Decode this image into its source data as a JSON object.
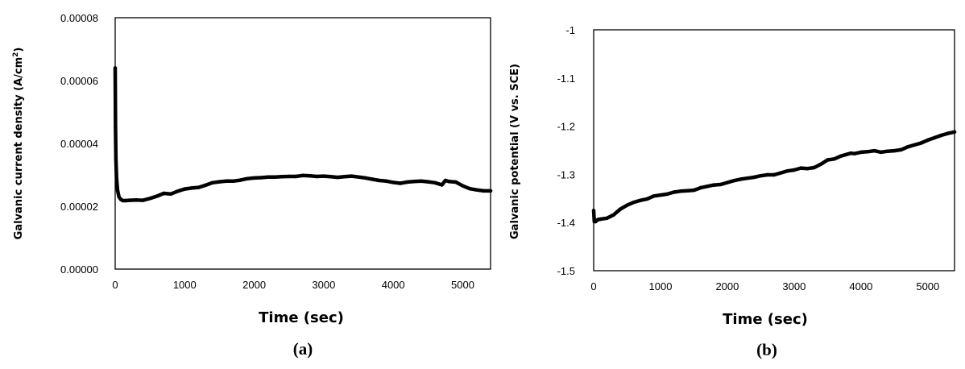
{
  "chart_data": [
    {
      "type": "line",
      "panel_label": "(a)",
      "xlabel": "Time (sec)",
      "ylabel_main": "Galvanic current density (A/cm",
      "ylabel_sup": "2",
      "ylabel_end": ")",
      "xlim": [
        0,
        5400
      ],
      "ylim": [
        0,
        8e-05
      ],
      "x_ticks": [
        "0",
        "1000",
        "2000",
        "3000",
        "4000",
        "5000"
      ],
      "y_ticks": [
        "0.00000",
        "0.00002",
        "0.00004",
        "0.00006",
        "0.00008"
      ],
      "grid": false,
      "series": [
        {
          "x": [
            0,
            5,
            10,
            20,
            35,
            55,
            80,
            110,
            150,
            200,
            300,
            400,
            500,
            600,
            700,
            800,
            900,
            1000,
            1100,
            1200,
            1300,
            1400,
            1500,
            1600,
            1700,
            1800,
            1900,
            2000,
            2100,
            2200,
            2300,
            2400,
            2500,
            2600,
            2700,
            2800,
            2900,
            3000,
            3100,
            3200,
            3300,
            3400,
            3500,
            3600,
            3700,
            3800,
            3900,
            4000,
            4100,
            4200,
            4300,
            4400,
            4500,
            4600,
            4700,
            4750,
            4800,
            4900,
            5000,
            5100,
            5200,
            5300,
            5400
          ],
          "y": [
            6.4e-05,
            4.5e-05,
            3.5e-05,
            2.9e-05,
            2.5e-05,
            2.3e-05,
            2.22e-05,
            2.18e-05,
            2.18e-05,
            2.19e-05,
            2.2e-05,
            2.19e-05,
            2.25e-05,
            2.32e-05,
            2.41e-05,
            2.39e-05,
            2.48e-05,
            2.55e-05,
            2.58e-05,
            2.6e-05,
            2.67e-05,
            2.75e-05,
            2.78e-05,
            2.8e-05,
            2.8e-05,
            2.83e-05,
            2.88e-05,
            2.9e-05,
            2.91e-05,
            2.93e-05,
            2.93e-05,
            2.94e-05,
            2.95e-05,
            2.95e-05,
            2.98e-05,
            2.97e-05,
            2.95e-05,
            2.96e-05,
            2.94e-05,
            2.92e-05,
            2.94e-05,
            2.96e-05,
            2.93e-05,
            2.9e-05,
            2.86e-05,
            2.82e-05,
            2.8e-05,
            2.76e-05,
            2.73e-05,
            2.77e-05,
            2.79e-05,
            2.8e-05,
            2.78e-05,
            2.75e-05,
            2.68e-05,
            2.82e-05,
            2.79e-05,
            2.77e-05,
            2.65e-05,
            2.56e-05,
            2.52e-05,
            2.49e-05,
            2.49e-05
          ]
        }
      ]
    },
    {
      "type": "line",
      "panel_label": "(b)",
      "xlabel": "Time (sec)",
      "ylabel": "Galvanic potential (V vs. SCE)",
      "xlim": [
        0,
        5400
      ],
      "ylim": [
        -1.5,
        -1.0
      ],
      "x_ticks": [
        "0",
        "1000",
        "2000",
        "3000",
        "4000",
        "5000"
      ],
      "y_ticks": [
        "-1",
        "-1.1",
        "-1.2",
        "-1.3",
        "-1.4",
        "-1.5"
      ],
      "grid": false,
      "series": [
        {
          "x": [
            0,
            10,
            30,
            60,
            100,
            200,
            300,
            400,
            500,
            600,
            700,
            800,
            900,
            1000,
            1100,
            1200,
            1300,
            1400,
            1500,
            1600,
            1700,
            1800,
            1900,
            2000,
            2100,
            2200,
            2300,
            2400,
            2500,
            2600,
            2700,
            2800,
            2900,
            3000,
            3100,
            3200,
            3300,
            3400,
            3500,
            3600,
            3700,
            3800,
            3850,
            3900,
            4000,
            4100,
            4200,
            4300,
            4400,
            4500,
            4600,
            4700,
            4800,
            4900,
            5000,
            5100,
            5200,
            5300,
            5400
          ],
          "y": [
            -1.375,
            -1.398,
            -1.398,
            -1.394,
            -1.393,
            -1.391,
            -1.384,
            -1.372,
            -1.364,
            -1.358,
            -1.354,
            -1.351,
            -1.345,
            -1.343,
            -1.341,
            -1.337,
            -1.335,
            -1.334,
            -1.333,
            -1.328,
            -1.325,
            -1.322,
            -1.321,
            -1.317,
            -1.313,
            -1.31,
            -1.308,
            -1.306,
            -1.303,
            -1.301,
            -1.301,
            -1.297,
            -1.293,
            -1.291,
            -1.287,
            -1.288,
            -1.286,
            -1.279,
            -1.27,
            -1.268,
            -1.262,
            -1.258,
            -1.256,
            -1.257,
            -1.254,
            -1.253,
            -1.251,
            -1.254,
            -1.252,
            -1.251,
            -1.249,
            -1.243,
            -1.239,
            -1.235,
            -1.229,
            -1.224,
            -1.219,
            -1.215,
            -1.212
          ]
        }
      ]
    }
  ]
}
